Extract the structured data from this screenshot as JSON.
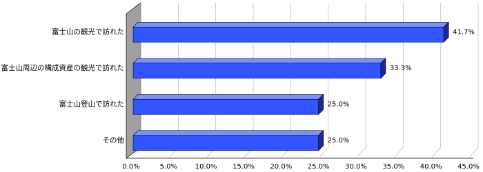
{
  "chart_data": {
    "type": "bar3d_horizontal",
    "categories": [
      "富士山の観光で訪れた",
      "富士山周辺の構成資産の観光で訪れた",
      "富士山登山で訪れた",
      "その他"
    ],
    "values": [
      41.7,
      33.3,
      25.0,
      25.0
    ],
    "value_labels": [
      "41.7%",
      "33.3%",
      "25.0%",
      "25.0%"
    ],
    "color": "#3355ff",
    "xlim": [
      0,
      45
    ],
    "xticks": [
      {
        "value": 0,
        "label": "0.0%"
      },
      {
        "value": 5,
        "label": "5.0%"
      },
      {
        "value": 10,
        "label": "10.0%"
      },
      {
        "value": 15,
        "label": "15.0%"
      },
      {
        "value": 20,
        "label": "20.0%"
      },
      {
        "value": 25,
        "label": "25.0%"
      },
      {
        "value": 30,
        "label": "30.0%"
      },
      {
        "value": 35,
        "label": "35.0%"
      },
      {
        "value": 40,
        "label": "40.0%"
      },
      {
        "value": 45,
        "label": "45.0%"
      }
    ],
    "grid": true
  }
}
